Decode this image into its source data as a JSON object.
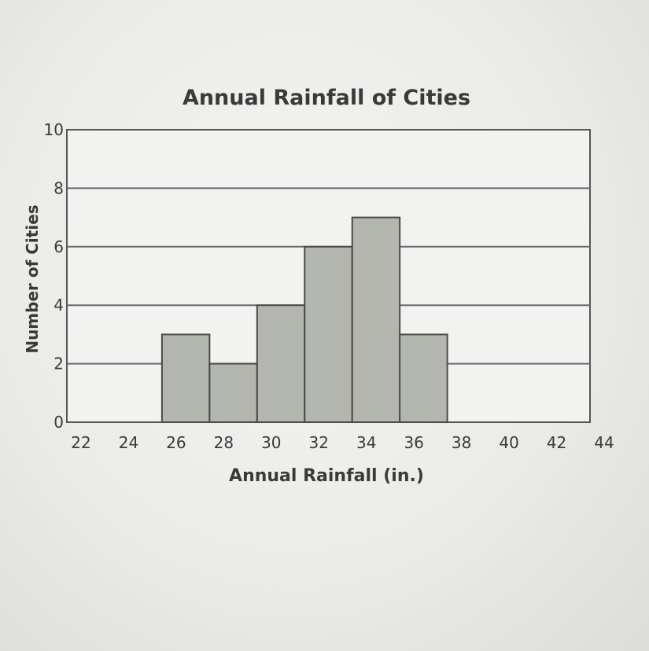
{
  "chart_data": {
    "type": "bar",
    "title": "Annual Rainfall of Cities",
    "xlabel": "Annual Rainfall (in.)",
    "ylabel": "Number of Cities",
    "x_ticks": [
      "22",
      "24",
      "26",
      "28",
      "30",
      "32",
      "34",
      "36",
      "38",
      "40",
      "42",
      "44"
    ],
    "y_ticks": [
      "0",
      "2",
      "4",
      "6",
      "8",
      "10"
    ],
    "xlim": [
      22,
      44
    ],
    "ylim": [
      0,
      10
    ],
    "grid": true,
    "bins": [
      {
        "start": 26,
        "end": 28,
        "value": 3
      },
      {
        "start": 28,
        "end": 30,
        "value": 2
      },
      {
        "start": 30,
        "end": 32,
        "value": 4
      },
      {
        "start": 32,
        "end": 34,
        "value": 6
      },
      {
        "start": 34,
        "end": 36,
        "value": 7
      },
      {
        "start": 36,
        "end": 38,
        "value": 3
      }
    ],
    "colors": {
      "bar_fill": "#b3b6ae",
      "bar_stroke": "#4a4a4a",
      "grid": "#6a6a6a",
      "text": "#3a3a3a"
    }
  }
}
